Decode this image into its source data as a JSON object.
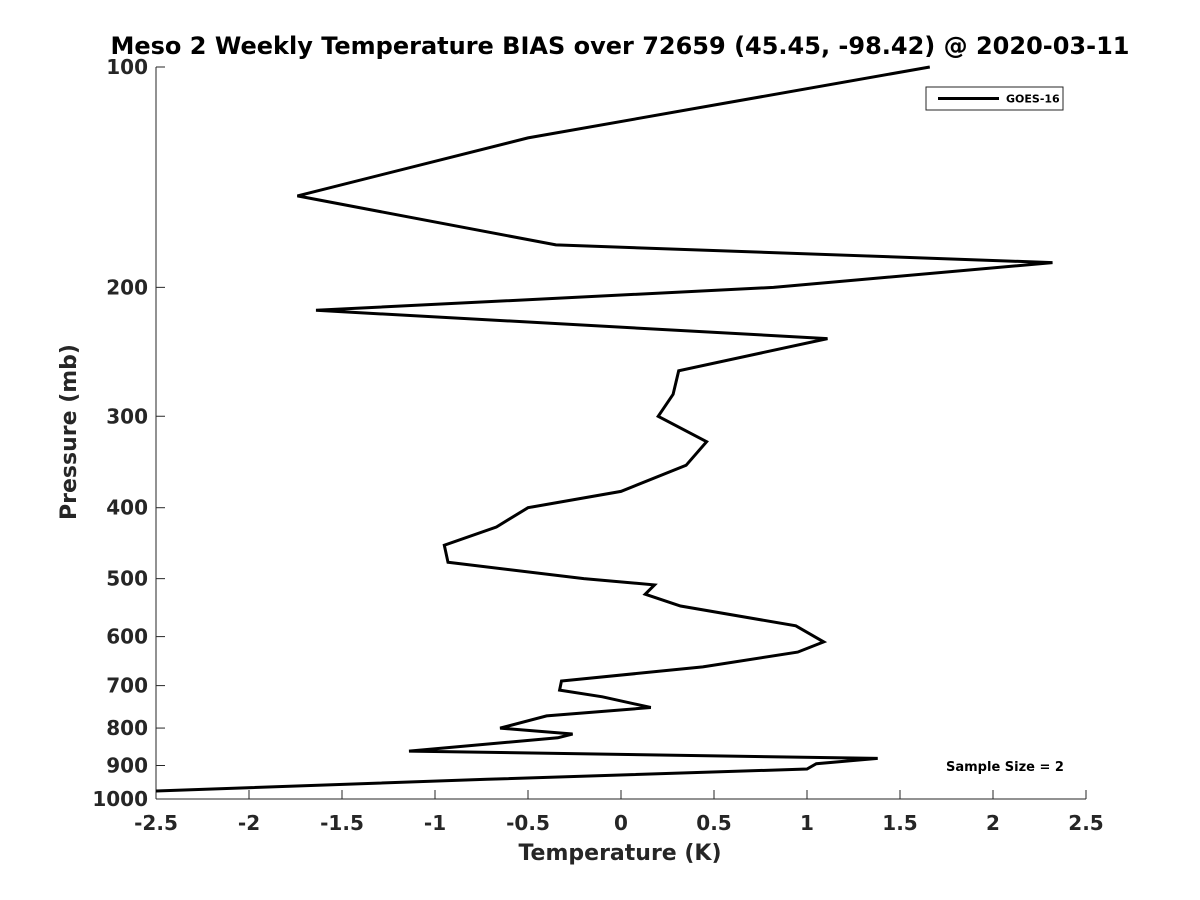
{
  "chart_data": {
    "type": "line",
    "title": "Meso 2 Weekly Temperature BIAS over 72659 (45.45, -98.42) @ 2020-03-11",
    "xlabel": "Temperature (K)",
    "ylabel": "Pressure (mb)",
    "xlim": [
      -2.5,
      2.5
    ],
    "ylim": [
      100,
      1000
    ],
    "y_scale": "log",
    "y_reversed": true,
    "grid": false,
    "xticks": [
      -2.5,
      -2,
      -1.5,
      -1,
      -0.5,
      0,
      0.5,
      1,
      1.5,
      2,
      2.5
    ],
    "xtick_labels": [
      "-2.5",
      "-2",
      "-1.5",
      "-1",
      "-0.5",
      "0",
      "0.5",
      "1",
      "1.5",
      "2",
      "2.5"
    ],
    "yticks": [
      100,
      200,
      300,
      400,
      500,
      600,
      700,
      800,
      900,
      1000
    ],
    "ytick_labels": [
      "100",
      "200",
      "300",
      "400",
      "500",
      "600",
      "700",
      "800",
      "900",
      "1000"
    ],
    "legend_position": "top-right",
    "series": [
      {
        "name": "GOES-16",
        "color": "#000000",
        "temperature": [
          1.66,
          -0.5,
          -1.74,
          -0.35,
          2.32,
          0.82,
          -1.64,
          1.11,
          0.31,
          0.28,
          0.2,
          0.46,
          0.35,
          0.0,
          -0.5,
          -0.67,
          -0.95,
          -0.93,
          -0.2,
          0.18,
          0.13,
          0.32,
          0.94,
          1.09,
          0.95,
          0.44,
          -0.32,
          -0.33,
          -0.1,
          0.16,
          -0.4,
          -0.65,
          -0.26,
          -0.34,
          -1.14,
          1.38,
          1.05,
          1.0,
          -0.72,
          -2.5
        ],
        "pressure": [
          100,
          125,
          150,
          175,
          185,
          200,
          215,
          235,
          260,
          280,
          300,
          325,
          350,
          380,
          400,
          425,
          450,
          475,
          500,
          510,
          525,
          545,
          580,
          610,
          630,
          660,
          690,
          710,
          725,
          750,
          770,
          800,
          815,
          825,
          860,
          880,
          895,
          910,
          940,
          975
        ]
      }
    ],
    "annotation": "Sample Size = 2"
  }
}
